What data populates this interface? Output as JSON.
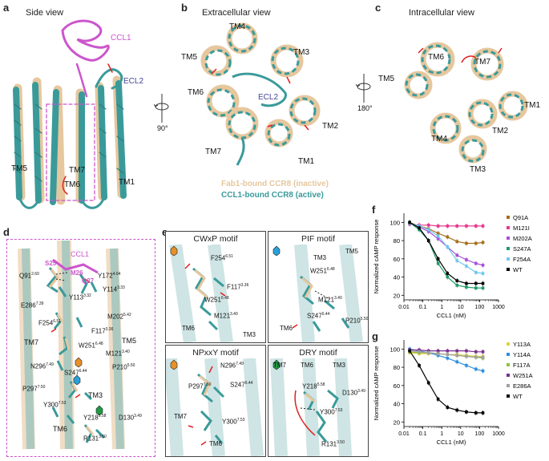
{
  "panels": {
    "a": {
      "letter": "a",
      "title": "Side view",
      "ccl1": "CCL1",
      "ecl2": "ECL2",
      "tm5": "TM5",
      "tm7": "TM7",
      "tm6": "TM6",
      "tm1": "TM1"
    },
    "b": {
      "letter": "b",
      "title": "Extracellular view",
      "rot": "90°",
      "tm4": "TM4",
      "tm5": "TM5",
      "tm3": "TM3",
      "tm6": "TM6",
      "ecl2": "ECL2",
      "tm2": "TM2",
      "tm7": "TM7",
      "tm1": "TM1",
      "legend_inactive": "Fab1-bound CCR8 (inactive)",
      "legend_active": "CCL1-bound CCR8 (active)"
    },
    "c": {
      "letter": "c",
      "title": "Intracellular view",
      "rot": "180°",
      "tm6": "TM6",
      "tm7": "TM7",
      "tm5": "TM5",
      "tm1": "TM1",
      "tm2": "TM2",
      "tm4": "TM4",
      "tm3": "TM3"
    },
    "d": {
      "letter": "d",
      "ccl1": "CCL1",
      "s25": "S25",
      "m26": "M26",
      "q27": "Q27",
      "residues": [
        "Q91",
        "Y172",
        "Y114",
        "Y113",
        "E286",
        "M202",
        "F254",
        "F117",
        "W251",
        "M121",
        "N296",
        "S247",
        "P210",
        "P297",
        "Y300",
        "Y218",
        "D130",
        "R131"
      ],
      "sups": [
        "2.60",
        "4.64",
        "3.33",
        "3.32",
        "7.39",
        "5.42",
        "6.51",
        "3.36",
        "6.48",
        "3.40",
        "7.49",
        "6.44",
        "5.50",
        "7.50",
        "7.53",
        "5.58",
        "3.49",
        "3.50"
      ],
      "tm7": "TM7",
      "tm5": "TM5",
      "tm3": "TM3",
      "tm6": "TM6"
    },
    "e": {
      "letter": "e",
      "motifs": [
        {
          "title": "CWxP motif",
          "labels": [
            "F254",
            "F117",
            "W251",
            "M121"
          ],
          "sups": [
            "6.51",
            "3.36",
            "6.48",
            "3.40"
          ],
          "tms": [
            "TM6",
            "TM3"
          ]
        },
        {
          "title": "PIF motif",
          "labels": [
            "W251",
            "M121",
            "S247",
            "P210"
          ],
          "sups": [
            "6.48",
            "3.40",
            "6.44",
            "5.50"
          ],
          "tms": [
            "TM3",
            "TM5",
            "TM6"
          ]
        },
        {
          "title": "NPxxY motif",
          "labels": [
            "N296",
            "P297",
            "S247",
            "Y300"
          ],
          "sups": [
            "7.49",
            "7.50",
            "6.44",
            "7.53"
          ],
          "tms": [
            "TM7",
            "TM6"
          ]
        },
        {
          "title": "DRY motif",
          "labels": [
            "Y218",
            "D130",
            "Y300",
            "R131"
          ],
          "sups": [
            "5.58",
            "3.49",
            "7.53",
            "3.50"
          ],
          "tms": [
            "TM7",
            "TM6",
            "TM3"
          ]
        }
      ]
    },
    "f": {
      "letter": "f"
    },
    "g": {
      "letter": "g"
    }
  },
  "chart_data": [
    {
      "type": "line",
      "panel": "f",
      "xlabel": "CCL1 (nM)",
      "ylabel": "Normalized cAMP response",
      "xscale": "log",
      "xlim": [
        0.01,
        1000
      ],
      "ylim": [
        15,
        110
      ],
      "xticks": [
        "0.01",
        "0.1",
        "1",
        "10",
        "100",
        "1000"
      ],
      "yticks": [
        "20",
        "40",
        "60",
        "80",
        "100"
      ],
      "x": [
        0.02,
        0.064,
        0.2,
        0.64,
        2,
        6.4,
        20,
        64,
        150
      ],
      "legend_position": "right",
      "series": [
        {
          "name": "Q91A",
          "color": "#a66f1a",
          "values": [
            100,
            96,
            93,
            88,
            84,
            79,
            77,
            77,
            78
          ]
        },
        {
          "name": "M121I",
          "color": "#e8368f",
          "values": [
            98,
            97,
            97,
            96,
            96,
            96,
            96,
            96,
            96
          ]
        },
        {
          "name": "M202A",
          "color": "#a64fd9",
          "values": [
            99,
            95,
            90,
            82,
            73,
            64,
            59,
            55,
            53
          ]
        },
        {
          "name": "S247A",
          "color": "#1f9a66",
          "values": [
            100,
            92,
            80,
            55,
            40,
            31,
            29,
            28,
            28
          ]
        },
        {
          "name": "F254A",
          "color": "#6ec8ee",
          "values": [
            99,
            96,
            92,
            85,
            73,
            58,
            52,
            45,
            44
          ]
        },
        {
          "name": "WT",
          "color": "#000000",
          "values": [
            100,
            94,
            80,
            60,
            44,
            36,
            33,
            33,
            33
          ]
        }
      ]
    },
    {
      "type": "line",
      "panel": "g",
      "xlabel": "CCL1 (nM)",
      "ylabel": "Normalized cAMP response",
      "xscale": "log",
      "xlim": [
        0.01,
        1000
      ],
      "ylim": [
        15,
        110
      ],
      "xticks": [
        "0.01",
        "0.1",
        "1",
        "10",
        "100",
        "1000"
      ],
      "yticks": [
        "20",
        "40",
        "60",
        "80",
        "100"
      ],
      "x": [
        0.02,
        0.064,
        0.2,
        0.64,
        2,
        6.4,
        20,
        64,
        150
      ],
      "legend_position": "right",
      "series": [
        {
          "name": "Y113A",
          "color": "#e3cf45",
          "values": [
            96,
            95,
            95,
            95,
            94,
            94,
            93,
            92,
            92
          ]
        },
        {
          "name": "Y114A",
          "color": "#2f8fe0",
          "values": [
            100,
            98,
            96,
            93,
            90,
            86,
            82,
            78,
            76
          ]
        },
        {
          "name": "F117A",
          "color": "#8fc23c",
          "values": [
            97,
            96,
            96,
            95,
            94,
            93,
            92,
            91,
            90
          ]
        },
        {
          "name": "W251A",
          "color": "#7a2f8f",
          "values": [
            99,
            99,
            98,
            98,
            98,
            98,
            98,
            97,
            97
          ]
        },
        {
          "name": "E286A",
          "color": "#a0a0a0",
          "values": [
            98,
            97,
            96,
            95,
            94,
            93,
            92,
            91,
            91
          ]
        },
        {
          "name": "WT",
          "color": "#000000",
          "values": [
            98,
            82,
            63,
            45,
            36,
            33,
            31,
            30,
            30
          ]
        }
      ]
    }
  ]
}
